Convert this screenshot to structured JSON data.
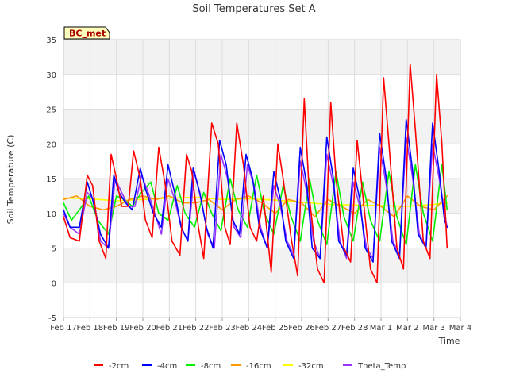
{
  "chart_data": {
    "type": "line",
    "title": "Soil Temperatures Set A",
    "xlabel": "Time",
    "ylabel": "Soil Temperature (C)",
    "annotation": "BC_met",
    "ylim": [
      -5,
      35
    ],
    "yticks": [
      "-5",
      "0",
      "5",
      "10",
      "15",
      "20",
      "25",
      "30",
      "35"
    ],
    "xlim": [
      0,
      15
    ],
    "xticks": [
      "Feb 17",
      "Feb 18",
      "Feb 19",
      "Feb 20",
      "Feb 21",
      "Feb 22",
      "Feb 23",
      "Feb 24",
      "Feb 25",
      "Feb 26",
      "Feb 27",
      "Feb 28",
      "Mar 1",
      "Mar 2",
      "Mar 3",
      "Mar 4"
    ],
    "x_unit": "days since Feb 17",
    "grid": true,
    "legend_position": "bottom",
    "series": [
      {
        "name": "-2cm",
        "color": "#ff0000",
        "x": [
          0,
          0.25,
          0.6,
          0.9,
          1.1,
          1.35,
          1.6,
          1.8,
          2.0,
          2.2,
          2.45,
          2.65,
          2.9,
          3.1,
          3.35,
          3.6,
          3.85,
          4.1,
          4.4,
          4.65,
          4.85,
          5.1,
          5.3,
          5.6,
          5.85,
          6.1,
          6.3,
          6.55,
          6.8,
          7.05,
          7.3,
          7.55,
          7.85,
          8.1,
          8.3,
          8.6,
          8.85,
          9.1,
          9.3,
          9.6,
          9.85,
          10.1,
          10.3,
          10.6,
          10.85,
          11.1,
          11.3,
          11.6,
          11.85,
          12.1,
          12.3,
          12.6,
          12.85,
          13.1,
          13.3,
          13.6,
          13.85,
          14.1,
          14.3,
          14.5
        ],
        "y": [
          9.5,
          6.5,
          6,
          15.5,
          14,
          6,
          3.5,
          18.5,
          15,
          11,
          11,
          19,
          15,
          9,
          6.5,
          19.5,
          14,
          6,
          4,
          18.5,
          16,
          8,
          3.5,
          23,
          20,
          8,
          5.5,
          23,
          17,
          8,
          6,
          12.5,
          1.5,
          20,
          15,
          6.5,
          1,
          26.5,
          12,
          2,
          0,
          26,
          15,
          5,
          3,
          20.5,
          13,
          2,
          0,
          29.5,
          20,
          5,
          2,
          31.5,
          22,
          6,
          3.5,
          30,
          20,
          5
        ]
      },
      {
        "name": "-4cm",
        "color": "#0000ff",
        "x": [
          0,
          0.25,
          0.6,
          0.9,
          1.1,
          1.4,
          1.7,
          1.9,
          2.1,
          2.35,
          2.6,
          2.9,
          3.1,
          3.4,
          3.7,
          3.95,
          4.2,
          4.45,
          4.7,
          4.9,
          5.15,
          5.4,
          5.65,
          5.9,
          6.15,
          6.4,
          6.65,
          6.9,
          7.15,
          7.4,
          7.7,
          7.95,
          8.2,
          8.4,
          8.7,
          8.95,
          9.2,
          9.4,
          9.7,
          9.95,
          10.2,
          10.4,
          10.7,
          10.95,
          11.2,
          11.4,
          11.7,
          11.95,
          12.2,
          12.4,
          12.7,
          12.95,
          13.2,
          13.4,
          13.7,
          13.95,
          14.2,
          14.4,
          14.5
        ],
        "y": [
          10.5,
          8,
          8,
          14.5,
          12,
          7,
          5,
          15.5,
          13,
          11.5,
          10.5,
          16.5,
          13.5,
          10,
          8,
          17,
          13,
          8,
          6,
          16.5,
          13,
          8,
          5,
          20.5,
          17,
          9,
          7,
          18.5,
          15,
          8,
          5,
          16,
          12,
          6,
          3.5,
          19.5,
          14,
          5,
          3.5,
          21,
          15,
          6,
          4,
          16.5,
          12,
          5,
          3,
          21.5,
          15,
          6,
          3.5,
          23.5,
          16,
          7,
          5,
          23,
          16,
          9,
          8
        ]
      },
      {
        "name": "-8cm",
        "color": "#00ee00",
        "x": [
          0,
          0.3,
          0.6,
          0.95,
          1.3,
          1.7,
          2.0,
          2.3,
          2.6,
          2.95,
          3.3,
          3.6,
          3.95,
          4.3,
          4.6,
          4.95,
          5.3,
          5.6,
          5.95,
          6.3,
          6.6,
          6.95,
          7.3,
          7.6,
          7.95,
          8.3,
          8.6,
          8.95,
          9.3,
          9.6,
          9.95,
          10.3,
          10.6,
          10.95,
          11.3,
          11.6,
          11.95,
          12.3,
          12.6,
          12.95,
          13.3,
          13.6,
          13.95,
          14.3,
          14.5
        ],
        "y": [
          11.5,
          9,
          10.5,
          12.5,
          9,
          7,
          12.5,
          12,
          11,
          13,
          14.5,
          10,
          9,
          14,
          10,
          8,
          13,
          10,
          7.5,
          15,
          10.5,
          8,
          15.5,
          10,
          7,
          14,
          9.5,
          6,
          15,
          9,
          5.5,
          16,
          9.5,
          6,
          14.5,
          9,
          6,
          16,
          9.5,
          5.5,
          17,
          10,
          6,
          17,
          10.5
        ]
      },
      {
        "name": "-16cm",
        "color": "#ff9900",
        "x": [
          0,
          0.5,
          1.0,
          1.5,
          2.0,
          2.5,
          3.0,
          3.5,
          4.0,
          4.5,
          5.0,
          5.5,
          6.0,
          6.5,
          7.0,
          7.5,
          8.0,
          8.5,
          9.0,
          9.5,
          10.0,
          10.5,
          11.0,
          11.5,
          12.0,
          12.5,
          13.0,
          13.5,
          14.0,
          14.5
        ],
        "y": [
          12,
          12.5,
          11,
          10.5,
          11,
          12,
          12.5,
          12,
          12.5,
          11.5,
          11.5,
          12,
          10.5,
          12,
          12.5,
          11.5,
          10,
          12,
          11.5,
          9.5,
          12,
          11,
          10,
          12,
          11,
          9.5,
          12.5,
          11,
          10.5,
          12.5
        ]
      },
      {
        "name": "-32cm",
        "color": "#ffff00",
        "x": [
          0,
          1,
          2,
          3,
          4,
          5,
          6,
          7,
          8,
          9,
          10,
          11,
          12,
          13,
          14,
          14.5
        ],
        "y": [
          12.2,
          12.1,
          11.8,
          12.0,
          12.2,
          12.3,
          12.0,
          12.1,
          11.9,
          11.6,
          11.3,
          11.2,
          11.1,
          11.0,
          11.3,
          11.5
        ]
      },
      {
        "name": "Theta_Temp",
        "color": "#9933ff",
        "x": [
          0,
          0.25,
          0.6,
          0.9,
          1.15,
          1.4,
          1.7,
          1.95,
          2.2,
          2.45,
          2.7,
          2.95,
          3.2,
          3.45,
          3.7,
          3.95,
          4.2,
          4.45,
          4.7,
          4.95,
          5.2,
          5.45,
          5.7,
          5.95,
          6.2,
          6.45,
          6.7,
          6.95,
          7.2,
          7.45,
          7.7,
          7.95,
          8.2,
          8.45,
          8.7,
          8.95,
          9.2,
          9.45,
          9.7,
          9.95,
          10.2,
          10.45,
          10.7,
          10.95,
          11.2,
          11.45,
          11.7,
          11.95,
          12.2,
          12.45,
          12.7,
          12.95,
          13.2,
          13.45,
          13.7,
          13.95,
          14.2,
          14.45,
          14.5
        ],
        "y": [
          10,
          8,
          7,
          13,
          12,
          6,
          5,
          15,
          13,
          11,
          11,
          15.5,
          13,
          10,
          7,
          15,
          12,
          8,
          6,
          16,
          12,
          7,
          5,
          18.5,
          15,
          8,
          6.5,
          17,
          14,
          8,
          5,
          14,
          11,
          6,
          4,
          17.5,
          13,
          6,
          3.5,
          18.5,
          14,
          6,
          3.5,
          14.5,
          11,
          5,
          3.5,
          19.5,
          14,
          6,
          4,
          21,
          15,
          7,
          5,
          20,
          15,
          9,
          8
        ]
      }
    ]
  }
}
